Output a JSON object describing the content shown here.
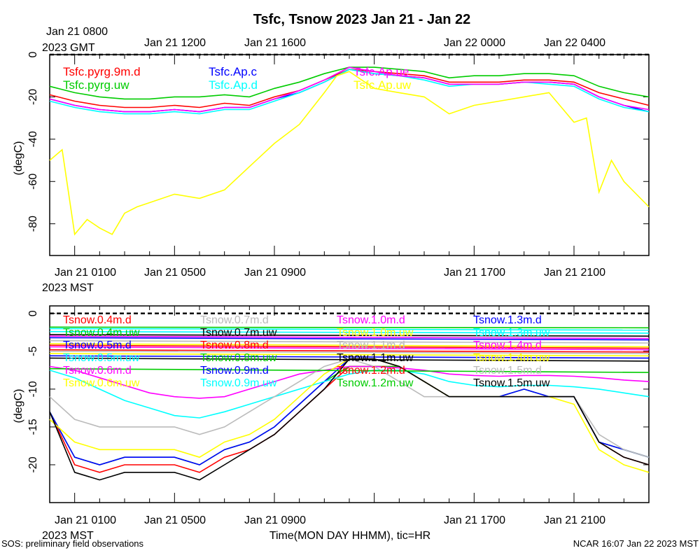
{
  "title": "Tsfc, Tsnow 2023 Jan 21 - Jan 22",
  "xlabel": "Time(MON DAY HHMM), tic=HR",
  "footer_left": "SOS: preliminary field observations",
  "footer_right": "NCAR 16:07 Jan 22 2023 MST",
  "top_axis": {
    "tz_label_line1": "Jan 21 0800",
    "tz_label_line2": "2023 GMT",
    "ticks": [
      "Jan 21 1200",
      "Jan 21 1600",
      "Jan 22 0000",
      "Jan 22 0400"
    ]
  },
  "bottom_axis": {
    "tz_label": "2023 MST",
    "ticks": [
      "Jan 21 0100",
      "Jan 21 0500",
      "Jan 21 0900",
      "Jan 21 1700",
      "Jan 21 2100"
    ]
  },
  "chart_data": [
    {
      "type": "line",
      "panel": "top",
      "ylabel": "(degC)",
      "ylim": [
        -95,
        0
      ],
      "yticks": [
        0,
        -20,
        -40,
        -60,
        -80
      ],
      "x_range_hours_mst": [
        0,
        24
      ],
      "series": [
        {
          "name": "Tsfc.pyrg.9m.d",
          "color": "#ff0000",
          "x": [
            0,
            1,
            2,
            3,
            4,
            5,
            6,
            7,
            8,
            9,
            10,
            11,
            12,
            13,
            14,
            15,
            16,
            17,
            18,
            19,
            20,
            21,
            22,
            23,
            24
          ],
          "y": [
            -19,
            -22,
            -24,
            -25,
            -25,
            -24,
            -25,
            -23,
            -24,
            -20,
            -17,
            -12,
            -7,
            -8,
            -9,
            -10,
            -13,
            -13,
            -13,
            -12,
            -12,
            -13,
            -18,
            -21,
            -24
          ]
        },
        {
          "name": "Tsfc.pyrg.uw",
          "color": "#00cc00",
          "x": [
            0,
            1,
            2,
            3,
            4,
            5,
            6,
            7,
            8,
            9,
            10,
            11,
            12,
            13,
            14,
            15,
            16,
            17,
            18,
            19,
            20,
            21,
            22,
            23,
            24
          ],
          "y": [
            -15,
            -18,
            -20,
            -21,
            -21,
            -20,
            -20,
            -19,
            -20,
            -16,
            -13,
            -9,
            -6,
            -6,
            -7,
            -8,
            -11,
            -10,
            -10,
            -9,
            -9,
            -10,
            -15,
            -18,
            -20
          ]
        },
        {
          "name": "Tsfc.Ap.c",
          "color": "#0000ff",
          "x": [
            0,
            1,
            2,
            3,
            4,
            5,
            6,
            7,
            8,
            9,
            10,
            11,
            12,
            13,
            14,
            15,
            16,
            17,
            18,
            19,
            20,
            21,
            22,
            23,
            24
          ],
          "y": [
            -21,
            -24,
            -26,
            -27,
            -27,
            -26,
            -27,
            -25,
            -25,
            -21,
            -18,
            -13,
            -7,
            -9,
            -10,
            -11,
            -14,
            -14,
            -14,
            -13,
            -13,
            -14,
            -20,
            -24,
            -27
          ]
        },
        {
          "name": "Tsfc.Ap.d",
          "color": "#00ffff",
          "x": [
            0,
            1,
            2,
            3,
            4,
            5,
            6,
            7,
            8,
            9,
            10,
            11,
            12,
            13,
            14,
            15,
            16,
            17,
            18,
            19,
            20,
            21,
            22,
            23,
            24
          ],
          "y": [
            -22,
            -25,
            -27,
            -28,
            -28,
            -27,
            -28,
            -26,
            -26,
            -22,
            -18,
            -13,
            -7,
            -9,
            -10,
            -12,
            -15,
            -14,
            -14,
            -13,
            -14,
            -15,
            -21,
            -25,
            -27
          ]
        },
        {
          "name": "Tsfc.Ap.ue",
          "color": "#ff00ff",
          "x": [
            0,
            1,
            2,
            3,
            4,
            5,
            6,
            7,
            8,
            9,
            10,
            11,
            12,
            13,
            14,
            15,
            16,
            17,
            18,
            19,
            20,
            21,
            22,
            23,
            24
          ],
          "y": [
            -21,
            -24,
            -26,
            -27,
            -27,
            -26,
            -27,
            -25,
            -25,
            -21,
            -17,
            -12,
            -6,
            -8,
            -10,
            -11,
            -14,
            -14,
            -14,
            -13,
            -13,
            -14,
            -20,
            -24,
            -26
          ]
        },
        {
          "name": "Tsfc.Ap.uw",
          "color": "#ffff00",
          "x": [
            0,
            0.5,
            1,
            1.5,
            2,
            2.5,
            3,
            3.5,
            4,
            5,
            6,
            7,
            8,
            9,
            10,
            11,
            11.5,
            12,
            12.5,
            13,
            14,
            15,
            16,
            17,
            18,
            19,
            20,
            20.5,
            21,
            21.5,
            22,
            22.5,
            23,
            24
          ],
          "y": [
            -50,
            -45,
            -85,
            -78,
            -82,
            -85,
            -75,
            -72,
            -70,
            -66,
            -68,
            -64,
            -53,
            -42,
            -33,
            -18,
            -10,
            -8,
            -12,
            -16,
            -18,
            -20,
            -28,
            -24,
            -22,
            -20,
            -18,
            -25,
            -32,
            -30,
            -65,
            -50,
            -60,
            -72
          ]
        }
      ]
    },
    {
      "type": "line",
      "panel": "bottom",
      "ylabel": "(degC)",
      "ylim": [
        -25,
        1
      ],
      "yticks": [
        0,
        -5,
        -10,
        -15,
        -20
      ],
      "x_range_hours_mst": [
        0,
        24
      ],
      "series": [
        {
          "name": "Tsnow.0.4m.d",
          "color": "#ff0000",
          "x": [
            0,
            1,
            2,
            3,
            4,
            5,
            6,
            7,
            8,
            9,
            10,
            11,
            12,
            13,
            14,
            15,
            16,
            17,
            18,
            19,
            20,
            21,
            22,
            23,
            24
          ],
          "y": [
            -13,
            -20,
            -21,
            -20,
            -20,
            -20,
            -21,
            -19,
            -18,
            -16,
            -13,
            -10,
            -7,
            -7,
            -7,
            -9,
            -11,
            -11,
            -11,
            -11,
            -11,
            -11,
            -17,
            -19,
            -20
          ]
        },
        {
          "name": "Tsnow.0.4m.uw",
          "color": "#00cc00",
          "x": [
            0,
            1,
            2,
            3,
            4,
            5,
            6,
            7,
            8,
            9,
            10,
            11,
            12,
            13,
            14,
            15,
            16,
            17,
            18,
            19,
            20,
            21,
            22,
            23,
            24
          ],
          "y": [
            -13,
            -19,
            -20,
            -19,
            -19,
            -19,
            -20,
            -18,
            -17,
            -15,
            -12,
            -9,
            -7,
            -7,
            -7,
            -9,
            -11,
            -11,
            -11,
            -10,
            -11,
            -11,
            -17,
            -18,
            -19
          ]
        },
        {
          "name": "Tsnow.0.5m.d",
          "color": "#0000ff",
          "x": [
            0,
            1,
            2,
            3,
            4,
            5,
            6,
            7,
            8,
            9,
            10,
            11,
            12,
            13,
            14,
            15,
            16,
            17,
            18,
            19,
            20,
            21,
            22,
            23,
            24
          ],
          "y": [
            -13,
            -19,
            -20,
            -19,
            -19,
            -19,
            -20,
            -18,
            -17,
            -15,
            -12,
            -9,
            -6,
            -6,
            -7,
            -9,
            -11,
            -11,
            -11,
            -10,
            -11,
            -11,
            -17,
            -18,
            -19
          ]
        },
        {
          "name": "Tsnow.0.5m.uw",
          "color": "#00ffff",
          "x": [
            0,
            1,
            2,
            3,
            4,
            5,
            6,
            7,
            8,
            9,
            10,
            11,
            12,
            13,
            14,
            15,
            16,
            17,
            18,
            19,
            20,
            21,
            22,
            23,
            24
          ],
          "y": [
            -7.5,
            -8.5,
            -10,
            -11.5,
            -12.5,
            -13.5,
            -13.8,
            -13,
            -12,
            -11,
            -10,
            -9,
            -8,
            -7.5,
            -7.5,
            -8,
            -9,
            -9.5,
            -9.7,
            -9.5,
            -9.5,
            -9.7,
            -10,
            -10.5,
            -11
          ]
        },
        {
          "name": "Tsnow.0.6m.d",
          "color": "#ff00ff",
          "x": [
            0,
            1,
            2,
            3,
            4,
            5,
            6,
            7,
            8,
            9,
            10,
            11,
            12,
            13,
            14,
            15,
            16,
            17,
            18,
            19,
            20,
            21,
            22,
            23,
            24
          ],
          "y": [
            -7,
            -7.5,
            -8.5,
            -9.5,
            -10.5,
            -11,
            -11.2,
            -11,
            -10,
            -9,
            -8,
            -7.5,
            -7,
            -7,
            -7.2,
            -7.5,
            -8,
            -8.2,
            -8.3,
            -8.2,
            -8.2,
            -8.3,
            -8.5,
            -8.8,
            -9
          ]
        },
        {
          "name": "Tsnow.0.6m.uw",
          "color": "#ffff00",
          "x": [
            0,
            1,
            2,
            3,
            4,
            5,
            6,
            7,
            8,
            9,
            10,
            11,
            12,
            13,
            14,
            15,
            16,
            17,
            18,
            19,
            20,
            21,
            22,
            23,
            24
          ],
          "y": [
            -14,
            -17,
            -18,
            -18,
            -18,
            -18,
            -19,
            -17,
            -16,
            -14,
            -11,
            -8,
            -6,
            -6,
            -7,
            -9,
            -11,
            -11,
            -11,
            -11,
            -11,
            -12,
            -18,
            -20,
            -21
          ]
        },
        {
          "name": "Tsnow.0.7m.d",
          "color": "#bbbbbb",
          "x": [
            0,
            1,
            2,
            3,
            4,
            5,
            6,
            7,
            8,
            9,
            10,
            11,
            12,
            13,
            14,
            15,
            16,
            17,
            18,
            19,
            20,
            21,
            22,
            23,
            24
          ],
          "y": [
            -11,
            -14,
            -15,
            -15,
            -15,
            -15,
            -16,
            -15,
            -13,
            -11,
            -9,
            -7,
            -6,
            -7,
            -9,
            -11,
            -11,
            -11,
            -11,
            -11,
            -11,
            -11,
            -16,
            -18,
            -19
          ]
        },
        {
          "name": "Tsnow.0.7m.uw",
          "color": "#000000",
          "x": [
            0,
            1,
            2,
            3,
            4,
            5,
            6,
            7,
            8,
            9,
            10,
            11,
            12,
            13,
            14,
            15,
            16,
            17,
            18,
            19,
            20,
            21,
            22,
            23,
            24
          ],
          "y": [
            -13,
            -21,
            -22,
            -21,
            -21,
            -21,
            -22,
            -20,
            -18,
            -16,
            -13,
            -10,
            -6,
            -6,
            -7,
            -9,
            -11,
            -11,
            -11,
            -11,
            -11,
            -11,
            -17,
            -19,
            -20
          ]
        },
        {
          "name": "Tsnow.0.8m.d",
          "color": "#ff0000",
          "x": [
            0,
            24
          ],
          "y": [
            -4.2,
            -4.6
          ]
        },
        {
          "name": "Tsnow.0.8m.uw",
          "color": "#00cc00",
          "x": [
            0,
            24
          ],
          "y": [
            -7.3,
            -7.8
          ]
        },
        {
          "name": "Tsnow.0.9m.d",
          "color": "#0000ff",
          "x": [
            0,
            24
          ],
          "y": [
            -5.6,
            -5.9
          ]
        },
        {
          "name": "Tsnow.0.9m.uw",
          "color": "#00ffff",
          "x": [
            0,
            24
          ],
          "y": [
            -2.4,
            -2.6
          ]
        },
        {
          "name": "Tsnow.1.0m.d",
          "color": "#ff00ff",
          "x": [
            0,
            24
          ],
          "y": [
            -3.0,
            -3.3
          ]
        },
        {
          "name": "Tsnow.1.0m.uw",
          "color": "#ffff00",
          "x": [
            0,
            24
          ],
          "y": [
            -4.0,
            -4.4
          ]
        },
        {
          "name": "Tsnow.1.1m.d",
          "color": "#bbbbbb",
          "x": [
            0,
            24
          ],
          "y": [
            -5.0,
            -5.3
          ]
        },
        {
          "name": "Tsnow.1.1m.uw",
          "color": "#000000",
          "x": [
            0,
            24
          ],
          "y": [
            -5.9,
            -6.3
          ]
        },
        {
          "name": "Tsnow.1.2m.d",
          "color": "#ff0000",
          "x": [
            0,
            24
          ],
          "y": [
            -4.8,
            -5.1
          ]
        },
        {
          "name": "Tsnow.1.2m.uw",
          "color": "#00cc00",
          "x": [
            0,
            24
          ],
          "y": [
            -1.8,
            -1.9
          ]
        },
        {
          "name": "Tsnow.1.3m.d",
          "color": "#0000ff",
          "x": [
            0,
            24
          ],
          "y": [
            -3.2,
            -3.5
          ]
        },
        {
          "name": "Tsnow.1.3m.uw",
          "color": "#00ffff",
          "x": [
            0,
            24
          ],
          "y": [
            -2.0,
            -2.2
          ]
        },
        {
          "name": "Tsnow.1.4m.d",
          "color": "#ff00ff",
          "x": [
            0,
            24
          ],
          "y": [
            -4.4,
            -4.8
          ]
        },
        {
          "name": "Tsnow.1.4m.uw",
          "color": "#ffff00",
          "x": [
            0,
            24
          ],
          "y": [
            -5.3,
            -5.6
          ]
        },
        {
          "name": "Tsnow.1.5m.d",
          "color": "#bbbbbb",
          "x": [
            0,
            24
          ],
          "y": [
            -3.6,
            -3.9
          ]
        },
        {
          "name": "Tsnow.1.5m.uw",
          "color": "#000000",
          "x": [
            0,
            24
          ],
          "y": [
            -2.8,
            -3.0
          ]
        }
      ]
    }
  ]
}
